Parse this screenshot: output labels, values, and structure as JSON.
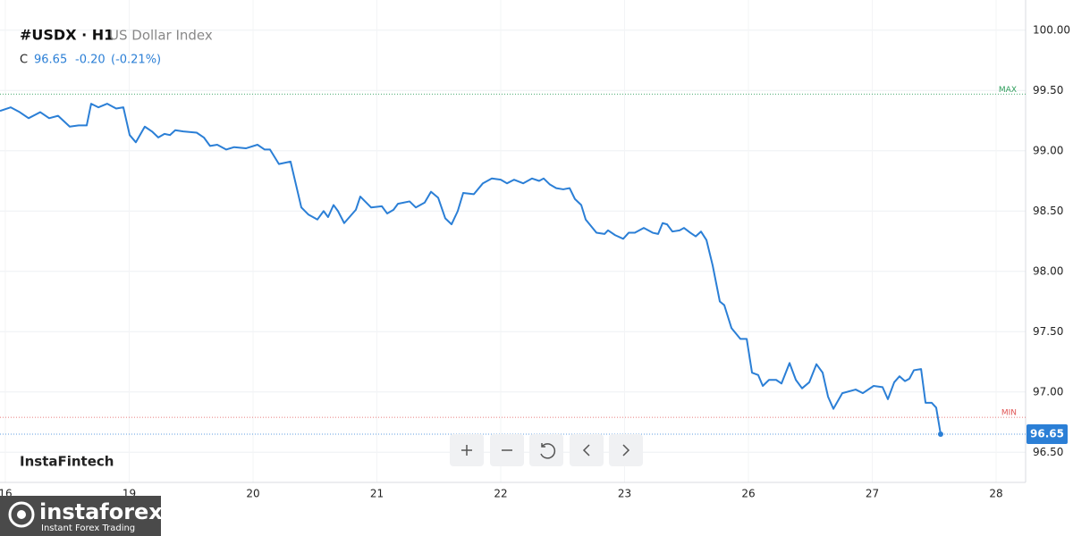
{
  "chart_data": {
    "type": "line",
    "header": {
      "symbol": "#USDX · H1",
      "name": "US Dollar Index",
      "close_label": "C",
      "close": "96.65",
      "change": "-0.20",
      "change_pct": "(-0.21%)"
    },
    "watermark": "InstaFintech",
    "logo": {
      "name": "instaforex",
      "tagline": "Instant Forex Trading"
    },
    "x": [
      -0.043,
      0.043,
      0.116,
      0.188,
      0.282,
      0.354,
      0.426,
      0.52,
      0.592,
      0.657,
      0.693,
      0.751,
      0.823,
      0.895,
      0.953,
      1.004,
      1.054,
      1.126,
      1.184,
      1.235,
      1.285,
      1.329,
      1.372,
      1.437,
      1.545,
      1.603,
      1.653,
      1.711,
      1.783,
      1.848,
      1.942,
      2.036,
      2.094,
      2.137,
      2.209,
      2.303,
      2.39,
      2.448,
      2.52,
      2.57,
      2.606,
      2.65,
      2.686,
      2.736,
      2.83,
      2.866,
      2.953,
      3.04,
      3.083,
      3.134,
      3.17,
      3.264,
      3.314,
      3.386,
      3.437,
      3.495,
      3.552,
      3.603,
      3.653,
      3.697,
      3.783,
      3.856,
      3.928,
      4.0,
      4.051,
      4.108,
      4.181,
      4.253,
      4.31,
      4.347,
      4.397,
      4.448,
      4.505,
      4.556,
      4.599,
      4.65,
      4.686,
      4.773,
      4.838,
      4.866,
      4.924,
      4.989,
      5.033,
      5.083,
      5.155,
      5.227,
      5.271,
      5.307,
      5.343,
      5.386,
      5.444,
      5.48,
      5.531,
      5.574,
      5.617,
      5.661,
      5.711,
      5.769,
      5.805,
      5.863,
      5.935,
      5.986,
      6.029,
      6.079,
      6.116,
      6.166,
      6.224,
      6.267,
      6.332,
      6.383,
      6.433,
      6.491,
      6.549,
      6.599,
      6.643,
      6.686,
      6.758,
      6.866,
      6.924,
      7.011,
      7.083,
      7.126,
      7.177,
      7.22,
      7.264,
      7.3,
      7.336,
      7.394,
      7.43,
      7.48,
      7.516,
      7.552
    ],
    "series": [
      {
        "name": "#USDX",
        "color": "#2b7fd6",
        "values": [
          99.33,
          99.36,
          99.32,
          99.27,
          99.32,
          99.27,
          99.29,
          99.2,
          99.21,
          99.21,
          99.39,
          99.36,
          99.39,
          99.35,
          99.36,
          99.13,
          99.07,
          99.2,
          99.16,
          99.11,
          99.14,
          99.13,
          99.17,
          99.16,
          99.15,
          99.11,
          99.04,
          99.05,
          99.01,
          99.03,
          99.02,
          99.05,
          99.01,
          99.01,
          98.89,
          98.91,
          98.53,
          98.47,
          98.43,
          98.5,
          98.45,
          98.55,
          98.5,
          98.4,
          98.51,
          98.62,
          98.53,
          98.54,
          98.48,
          98.51,
          98.56,
          98.58,
          98.53,
          98.57,
          98.66,
          98.61,
          98.44,
          98.39,
          98.5,
          98.65,
          98.64,
          98.73,
          98.77,
          98.76,
          98.73,
          98.76,
          98.73,
          98.77,
          98.75,
          98.77,
          98.72,
          98.69,
          98.68,
          98.69,
          98.6,
          98.55,
          98.43,
          98.32,
          98.31,
          98.34,
          98.3,
          98.27,
          98.32,
          98.32,
          98.36,
          98.32,
          98.31,
          98.4,
          98.39,
          98.33,
          98.34,
          98.36,
          98.32,
          98.29,
          98.33,
          98.26,
          98.05,
          97.75,
          97.72,
          97.53,
          97.44,
          97.44,
          97.16,
          97.14,
          97.05,
          97.1,
          97.1,
          97.07,
          97.24,
          97.1,
          97.03,
          97.08,
          97.23,
          97.16,
          96.96,
          96.86,
          96.99,
          97.02,
          96.99,
          97.05,
          97.04,
          96.94,
          97.08,
          97.13,
          97.09,
          97.11,
          97.18,
          97.19,
          96.91,
          96.91,
          96.87,
          96.65
        ]
      }
    ],
    "xlim": [
      -0.043,
      8.238
    ],
    "xticks": [
      {
        "value": 0,
        "label": "16"
      },
      {
        "value": 1,
        "label": "19"
      },
      {
        "value": 2,
        "label": "20"
      },
      {
        "value": 3,
        "label": "21"
      },
      {
        "value": 4,
        "label": "22"
      },
      {
        "value": 5,
        "label": "23"
      },
      {
        "value": 6,
        "label": "26"
      },
      {
        "value": 7,
        "label": "27"
      },
      {
        "value": 8,
        "label": "28"
      }
    ],
    "ylim": [
      96.25,
      100.25
    ],
    "yticks": [
      {
        "value": 96.5,
        "label": "96.50"
      },
      {
        "value": 97,
        "label": "97.00"
      },
      {
        "value": 97.5,
        "label": "97.50"
      },
      {
        "value": 98,
        "label": "98.00"
      },
      {
        "value": 98.5,
        "label": "98.50"
      },
      {
        "value": 99,
        "label": "99.00"
      },
      {
        "value": 99.5,
        "label": "99.50"
      },
      {
        "value": 100,
        "label": "100.00"
      }
    ],
    "reference_lines": [
      {
        "label": "MAX",
        "value": 99.47,
        "color": "#2e9e5b"
      },
      {
        "label": "MIN",
        "value": 96.79,
        "color": "#e05555"
      }
    ],
    "last_value": 96.65,
    "grid": true
  }
}
